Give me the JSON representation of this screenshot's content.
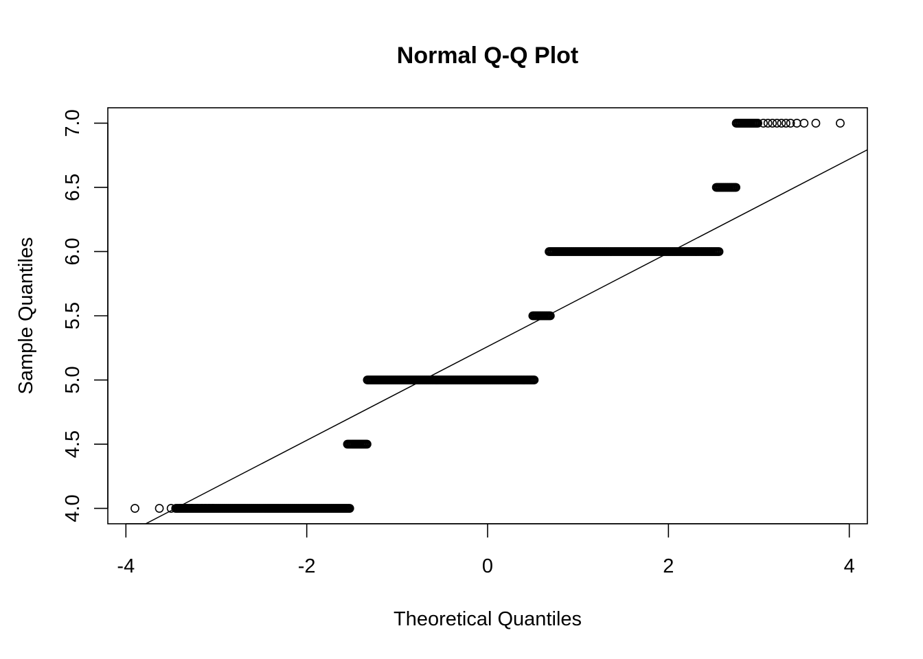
{
  "chart_data": {
    "type": "scatter",
    "title": "Normal Q-Q Plot",
    "xlabel": "Theoretical Quantiles",
    "ylabel": "Sample Quantiles",
    "xlim": [
      -4.2,
      4.2
    ],
    "ylim": [
      3.88,
      7.12
    ],
    "x_ticks": [
      -4,
      -2,
      0,
      2,
      4
    ],
    "x_tick_labels": [
      "-4",
      "-2",
      "0",
      "2",
      "4"
    ],
    "y_ticks": [
      4.0,
      4.5,
      5.0,
      5.5,
      6.0,
      6.5,
      7.0
    ],
    "y_tick_labels": [
      "4.0",
      "4.5",
      "5.0",
      "5.5",
      "6.0",
      "6.5",
      "7.0"
    ],
    "grid": false,
    "marker": "open-circle",
    "qq_line": {
      "intercept": 5.26,
      "slope": 0.365
    },
    "groups": [
      {
        "y": 4.0,
        "x_from": -3.45,
        "x_to": -1.52,
        "isolated_x": [
          -3.9,
          -3.63,
          -3.5,
          -3.4,
          -3.33,
          -3.27,
          -3.21,
          -3.16,
          -3.12,
          -3.08,
          -3.04
        ]
      },
      {
        "y": 4.5,
        "x_from": -1.55,
        "x_to": -1.33,
        "isolated_x": []
      },
      {
        "y": 5.0,
        "x_from": -1.33,
        "x_to": 0.52,
        "isolated_x": []
      },
      {
        "y": 5.5,
        "x_from": 0.5,
        "x_to": 0.7,
        "isolated_x": []
      },
      {
        "y": 6.0,
        "x_from": 0.68,
        "x_to": 2.56,
        "isolated_x": []
      },
      {
        "y": 6.5,
        "x_from": 2.53,
        "x_to": 2.75,
        "isolated_x": []
      },
      {
        "y": 7.0,
        "x_from": 2.75,
        "x_to": 3.0,
        "isolated_x": [
          3.05,
          3.1,
          3.15,
          3.2,
          3.25,
          3.3,
          3.35,
          3.42,
          3.5,
          3.63,
          3.9
        ]
      }
    ]
  }
}
